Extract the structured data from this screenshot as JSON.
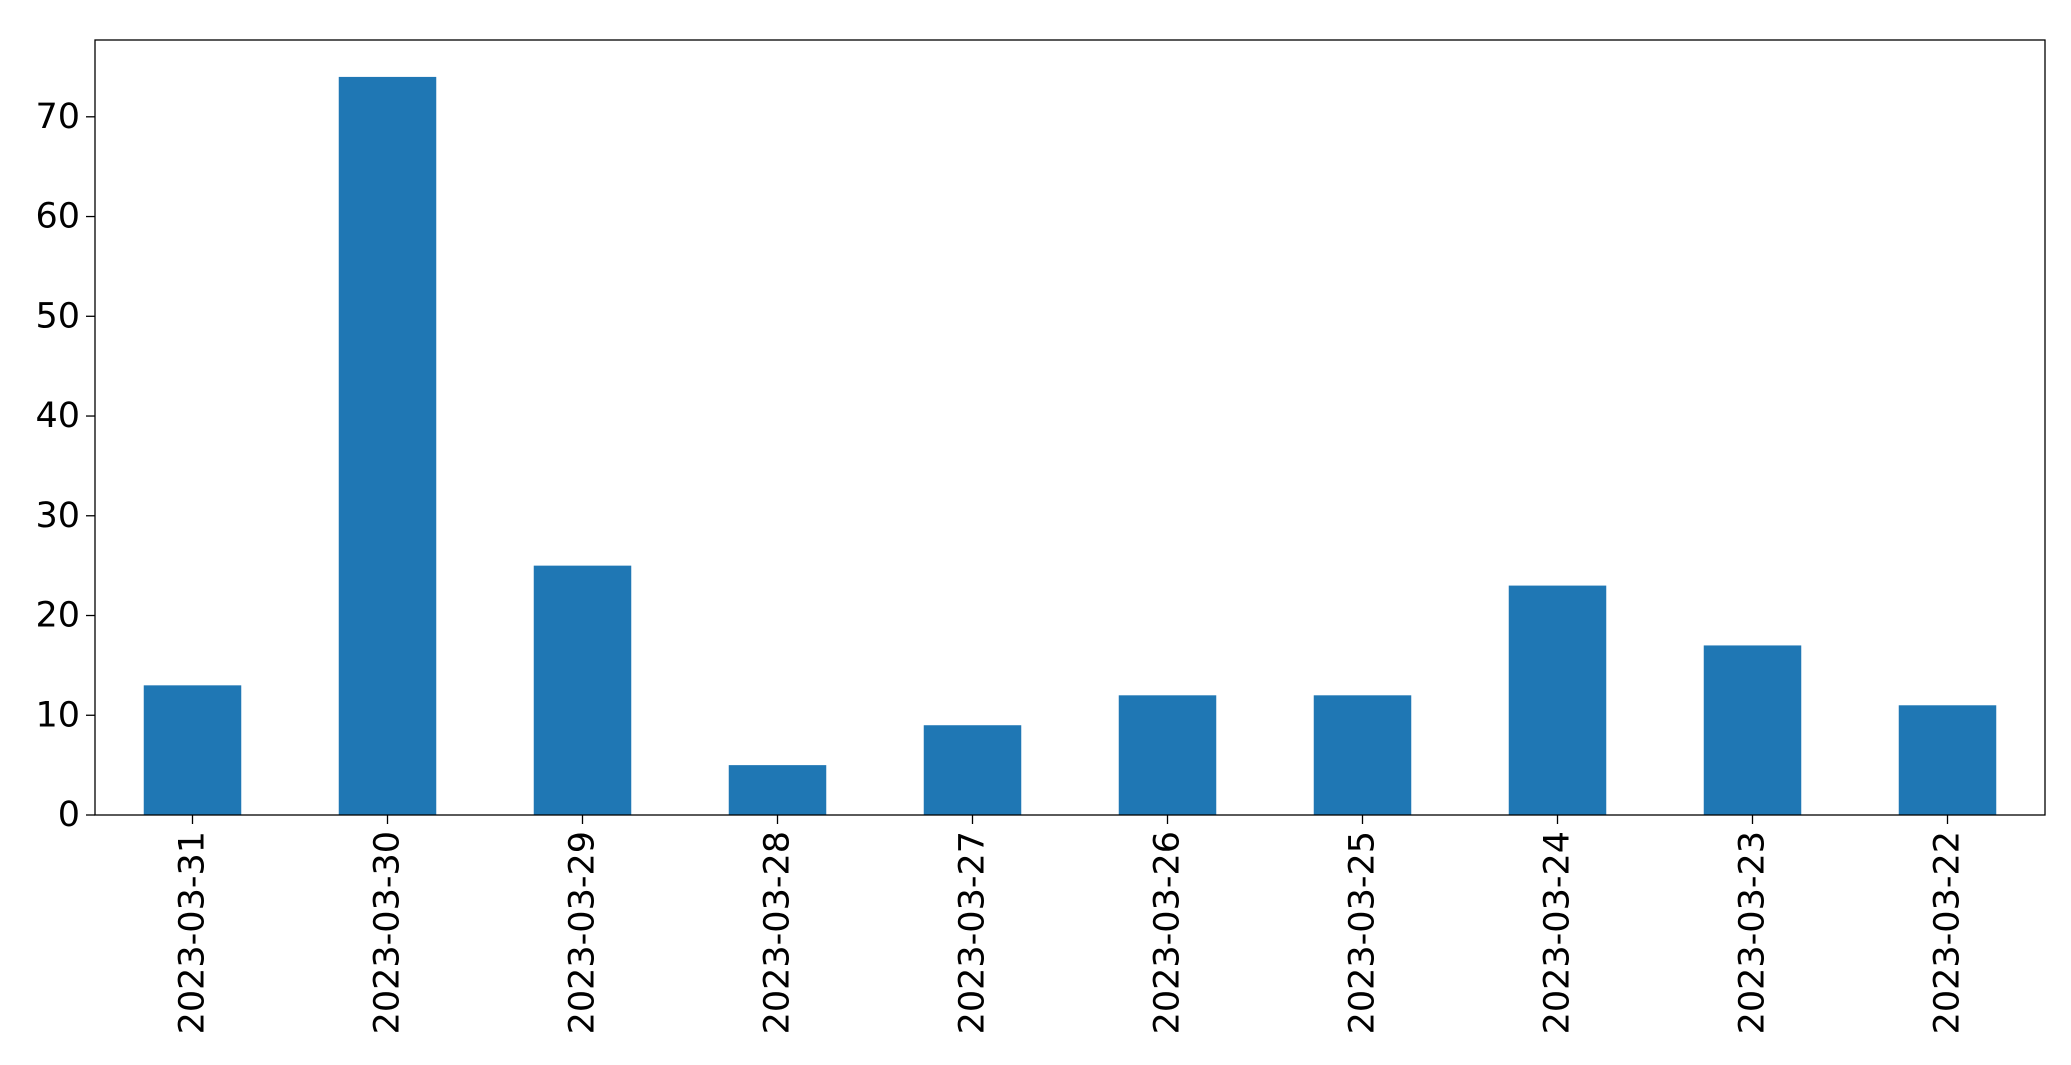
{
  "chart_data": {
    "type": "bar",
    "title": "",
    "xlabel": "",
    "ylabel": "",
    "categories": [
      "2023-03-31",
      "2023-03-30",
      "2023-03-29",
      "2023-03-28",
      "2023-03-27",
      "2023-03-26",
      "2023-03-25",
      "2023-03-24",
      "2023-03-23",
      "2023-03-22"
    ],
    "values": [
      13,
      74,
      25,
      5,
      9,
      12,
      12,
      23,
      17,
      11
    ],
    "ylim": [
      0,
      77.7
    ],
    "yticks": [
      "0",
      "10",
      "20",
      "30",
      "40",
      "50",
      "60",
      "70"
    ],
    "grid": false,
    "legend": "none",
    "bar_color": "#1f77b4"
  }
}
